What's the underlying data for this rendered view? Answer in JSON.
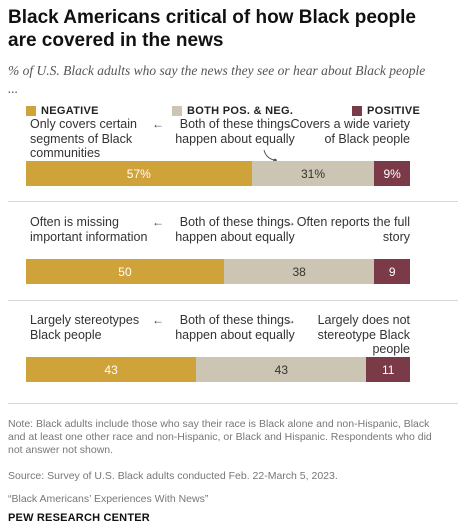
{
  "header": {
    "title": "Black Americans critical of how Black people are covered in the news",
    "subtitle": "% of U.S. Black adults who say the news they see or hear about Black people ..."
  },
  "legend": {
    "negative": "NEGATIVE",
    "both": "BOTH POS. & NEG.",
    "positive": "POSITIVE"
  },
  "colors": {
    "negative": "#cfa33a",
    "both": "#cdc5b4",
    "positive": "#7b3a47"
  },
  "rows": [
    {
      "left_label": "Only covers certain segments of Black communities",
      "mid_label": "Both of these things happen about equally",
      "right_label": "Covers a wide variety of Black people",
      "neg_label": "57%",
      "both_label": "31%",
      "pos_label": "9%"
    },
    {
      "left_label": "Often is missing important information",
      "mid_label": "Both of these things happen about equally",
      "right_label": "Often reports the full story",
      "neg_label": "50",
      "both_label": "38",
      "pos_label": "9"
    },
    {
      "left_label": "Largely stereotypes Black people",
      "mid_label": "Both of these things happen about equally",
      "right_label": "Largely does not stereotype Black people",
      "neg_label": "43",
      "both_label": "43",
      "pos_label": "11"
    }
  ],
  "chart_data": {
    "type": "bar",
    "orientation": "horizontal-stacked",
    "title": "Black Americans critical of how Black people are covered in the news",
    "subtitle": "% of U.S. Black adults who say the news they see or hear about Black people ...",
    "categories": [
      "Only covers certain segments of Black communities / Covers a wide variety of Black people",
      "Often is missing important information / Often reports the full story",
      "Largely stereotypes Black people / Largely does not stereotype Black people"
    ],
    "series": [
      {
        "name": "NEGATIVE",
        "values": [
          57,
          50,
          43
        ]
      },
      {
        "name": "BOTH POS. & NEG.",
        "values": [
          31,
          38,
          43
        ]
      },
      {
        "name": "POSITIVE",
        "values": [
          9,
          9,
          11
        ]
      }
    ],
    "legend_position": "top",
    "grid": false
  },
  "footer": {
    "note": "Note: Black adults include those who say their race is Black alone and non-Hispanic, Black and at least one other race and non-Hispanic, or Black and Hispanic. Respondents who did not answer not shown.",
    "source": "Source: Survey of U.S. Black adults conducted Feb. 22-March 5, 2023.",
    "report": "“Black Americans’ Experiences With News”",
    "brand": "PEW RESEARCH CENTER"
  }
}
